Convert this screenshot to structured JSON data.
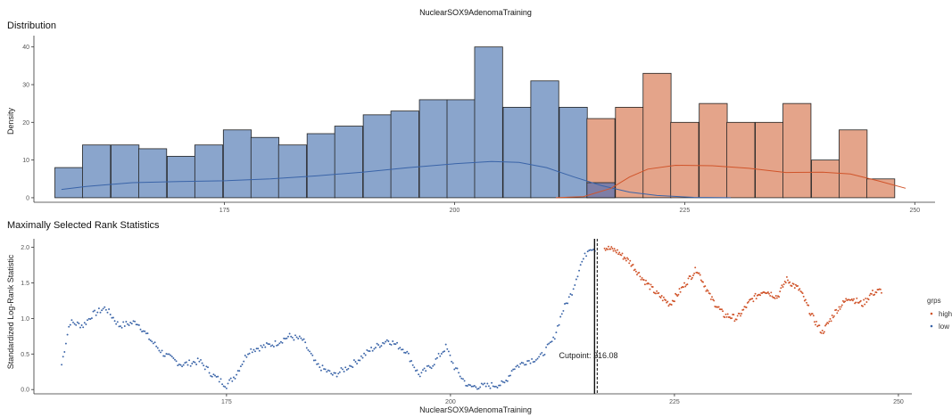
{
  "chart_data": {
    "title": "NuclearSOX9AdenomaTraining",
    "panels": [
      {
        "type": "bar",
        "subtitle": "Distribution",
        "ylabel": "Density",
        "xlabel": "",
        "xlim": [
          154.3,
          252.2
        ],
        "ylim": [
          -1.2,
          43
        ],
        "x_ticks": [
          175,
          200,
          225,
          250
        ],
        "y_ticks": [
          0,
          10,
          20,
          30,
          40
        ],
        "bin_width": 3.04,
        "grid": false,
        "colors": {
          "low": "#8aa5cc",
          "high": "#e4a48a",
          "overlap": "#7e7ea6"
        },
        "line_colors": {
          "low": "#3a64a8",
          "high": "#d0542a"
        },
        "bins_low": [
          {
            "x": 158.1,
            "value": 8
          },
          {
            "x": 161.1,
            "value": 14
          },
          {
            "x": 164.2,
            "value": 14
          },
          {
            "x": 167.2,
            "value": 13
          },
          {
            "x": 170.3,
            "value": 11
          },
          {
            "x": 173.3,
            "value": 14
          },
          {
            "x": 176.4,
            "value": 18
          },
          {
            "x": 179.4,
            "value": 16
          },
          {
            "x": 182.4,
            "value": 14
          },
          {
            "x": 185.5,
            "value": 17
          },
          {
            "x": 188.5,
            "value": 19
          },
          {
            "x": 191.6,
            "value": 22
          },
          {
            "x": 194.6,
            "value": 23
          },
          {
            "x": 197.7,
            "value": 26
          },
          {
            "x": 200.7,
            "value": 26
          },
          {
            "x": 203.7,
            "value": 40
          },
          {
            "x": 206.8,
            "value": 24
          },
          {
            "x": 209.8,
            "value": 31
          },
          {
            "x": 212.9,
            "value": 24
          }
        ],
        "bins_high": [
          {
            "x": 215.9,
            "value": 21
          },
          {
            "x": 219.0,
            "value": 24
          },
          {
            "x": 222.0,
            "value": 33
          },
          {
            "x": 225.0,
            "value": 20
          },
          {
            "x": 228.1,
            "value": 25
          },
          {
            "x": 231.1,
            "value": 20
          },
          {
            "x": 234.2,
            "value": 20
          },
          {
            "x": 237.2,
            "value": 25
          },
          {
            "x": 240.3,
            "value": 10
          },
          {
            "x": 243.3,
            "value": 18
          },
          {
            "x": 246.3,
            "value": 5
          }
        ],
        "overlap_bins": [
          {
            "x": 215.9,
            "value": 4
          }
        ],
        "density_low": [
          [
            157.3,
            2.2
          ],
          [
            160,
            3.0
          ],
          [
            165,
            4.0
          ],
          [
            170,
            4.3
          ],
          [
            175,
            4.5
          ],
          [
            180,
            5.0
          ],
          [
            185,
            5.8
          ],
          [
            190,
            6.8
          ],
          [
            195,
            8.0
          ],
          [
            200,
            9.0
          ],
          [
            204,
            9.6
          ],
          [
            207,
            9.4
          ],
          [
            210,
            8.0
          ],
          [
            213,
            5.5
          ],
          [
            216,
            3.2
          ],
          [
            219,
            1.5
          ],
          [
            222,
            0.6
          ],
          [
            226,
            0.1
          ],
          [
            230,
            0
          ]
        ],
        "density_high": [
          [
            211,
            0
          ],
          [
            214,
            0.3
          ],
          [
            217,
            2.5
          ],
          [
            219,
            5.5
          ],
          [
            221,
            7.6
          ],
          [
            224,
            8.6
          ],
          [
            228,
            8.5
          ],
          [
            232,
            7.8
          ],
          [
            236,
            6.7
          ],
          [
            240,
            6.8
          ],
          [
            243,
            6.3
          ],
          [
            246,
            4.5
          ],
          [
            249,
            2.5
          ]
        ]
      },
      {
        "type": "scatter",
        "subtitle": "Maximally Selected Rank Statistics",
        "ylabel": "Standardized Log-Rank Statistic",
        "xlabel": "NuclearSOX9AdenomaTraining",
        "xlim": [
          153.5,
          251.5
        ],
        "ylim": [
          -0.06,
          2.12
        ],
        "x_ticks": [
          175,
          200,
          225,
          250
        ],
        "y_ticks": [
          0.0,
          0.5,
          1.0,
          1.5,
          2.0
        ],
        "y_tick_labels": [
          "0.0",
          "0.5",
          "1.0",
          "1.5",
          "2.0"
        ],
        "grid": false,
        "cutpoint": 216.08,
        "cutpoint_label": "Cutpoint: 216.08",
        "cutpoint_label_pos": {
          "x": 215.4,
          "y": 0.44
        },
        "colors": {
          "low": "#3a64a8",
          "high": "#d0542a"
        },
        "low_range": [
          156.6,
          216.2
        ],
        "high_range": [
          217.2,
          248.2
        ],
        "low_curve": [
          [
            156.6,
            0.35
          ],
          [
            157.5,
            0.95
          ],
          [
            159,
            0.9
          ],
          [
            160,
            1.05
          ],
          [
            161.5,
            1.15
          ],
          [
            163,
            0.9
          ],
          [
            165,
            0.95
          ],
          [
            166.5,
            0.7
          ],
          [
            168,
            0.5
          ],
          [
            170,
            0.35
          ],
          [
            172,
            0.4
          ],
          [
            173.5,
            0.2
          ],
          [
            175,
            0.06
          ],
          [
            176,
            0.2
          ],
          [
            177.5,
            0.55
          ],
          [
            179,
            0.6
          ],
          [
            180.5,
            0.65
          ],
          [
            182,
            0.75
          ],
          [
            183.5,
            0.7
          ],
          [
            185,
            0.35
          ],
          [
            187,
            0.2
          ],
          [
            189,
            0.35
          ],
          [
            191,
            0.55
          ],
          [
            193,
            0.7
          ],
          [
            195,
            0.55
          ],
          [
            196.5,
            0.2
          ],
          [
            198,
            0.35
          ],
          [
            199.5,
            0.6
          ],
          [
            200.5,
            0.3
          ],
          [
            202,
            0.04
          ],
          [
            204,
            0.05
          ],
          [
            206,
            0.08
          ],
          [
            207,
            0.3
          ],
          [
            208.5,
            0.4
          ],
          [
            210,
            0.45
          ],
          [
            211.5,
            0.7
          ],
          [
            212.5,
            1.1
          ],
          [
            213.5,
            1.35
          ],
          [
            214.5,
            1.75
          ],
          [
            215.5,
            2.0
          ],
          [
            216.2,
            1.98
          ]
        ],
        "high_curve": [
          [
            217.2,
            2.0
          ],
          [
            218.5,
            1.95
          ],
          [
            220,
            1.8
          ],
          [
            221.5,
            1.55
          ],
          [
            223,
            1.35
          ],
          [
            224.5,
            1.2
          ],
          [
            226,
            1.45
          ],
          [
            227.5,
            1.7
          ],
          [
            229,
            1.3
          ],
          [
            230.5,
            1.05
          ],
          [
            232,
            1.0
          ],
          [
            233.5,
            1.25
          ],
          [
            235,
            1.4
          ],
          [
            236.5,
            1.3
          ],
          [
            237.5,
            1.55
          ],
          [
            239,
            1.4
          ],
          [
            240.5,
            1.0
          ],
          [
            241.5,
            0.8
          ],
          [
            243,
            1.1
          ],
          [
            244.5,
            1.3
          ],
          [
            246,
            1.2
          ],
          [
            247,
            1.35
          ],
          [
            248.2,
            1.4
          ]
        ],
        "legend": {
          "title": "grps",
          "entries": [
            {
              "name": "high",
              "color": "#d0542a"
            },
            {
              "name": "low",
              "color": "#3a64a8"
            }
          ]
        }
      }
    ]
  }
}
